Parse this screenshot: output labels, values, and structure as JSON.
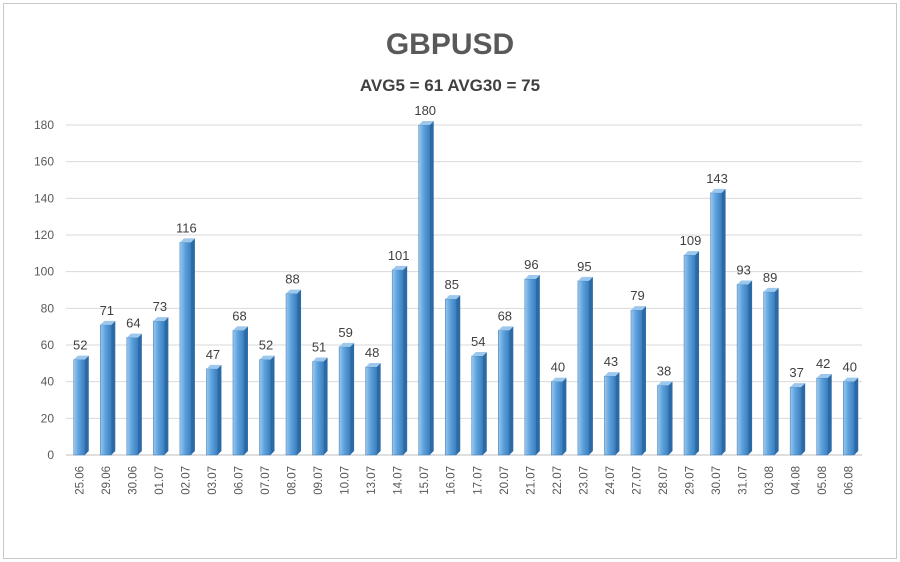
{
  "chart_data": {
    "type": "bar",
    "title": "GBPUSD",
    "subtitle": "AVG5 = 61 AVG30 = 75",
    "xlabel": "",
    "ylabel": "",
    "ylim": [
      0,
      180
    ],
    "yticks": [
      0,
      20,
      40,
      60,
      80,
      100,
      120,
      140,
      160,
      180
    ],
    "grid": true,
    "legend": "none",
    "bar_color": "#4f93d2",
    "bar_dark": "#2c6aa6",
    "bar_light": "#9cc8ee",
    "categories": [
      "25.06",
      "29.06",
      "30.06",
      "01.07",
      "02.07",
      "03.07",
      "06.07",
      "07.07",
      "08.07",
      "09.07",
      "10.07",
      "13.07",
      "14.07",
      "15.07",
      "16.07",
      "17.07",
      "20.07",
      "21.07",
      "22.07",
      "23.07",
      "24.07",
      "27.07",
      "28.07",
      "29.07",
      "30.07",
      "31.07",
      "03.08",
      "04.08",
      "05.08",
      "06.08"
    ],
    "values": [
      52,
      71,
      64,
      73,
      116,
      47,
      68,
      52,
      88,
      51,
      59,
      48,
      101,
      180,
      85,
      54,
      68,
      96,
      40,
      95,
      43,
      79,
      38,
      109,
      143,
      93,
      89,
      37,
      42,
      40
    ]
  }
}
